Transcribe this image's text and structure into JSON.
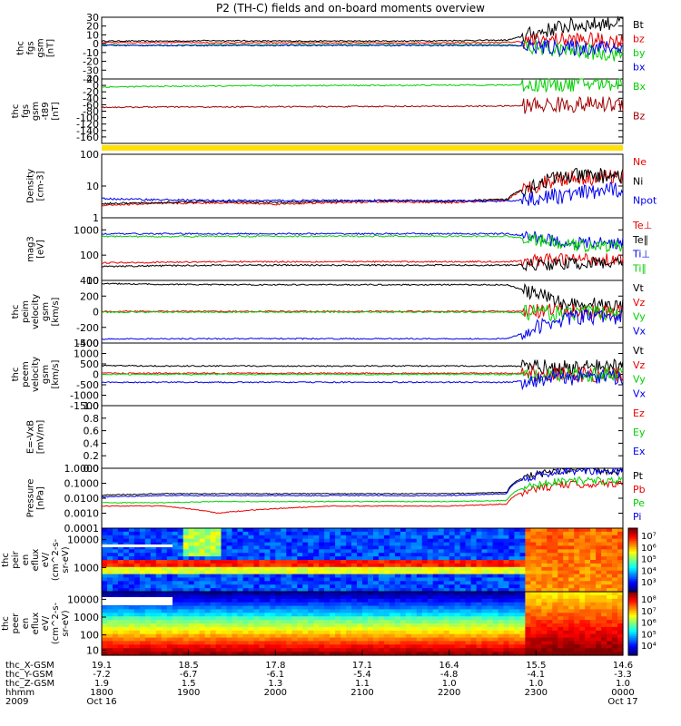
{
  "title": "P2 (TH-C) fields and on-board moments overview",
  "colors": {
    "black": "#000000",
    "red": "#e80000",
    "green": "#00d000",
    "blue": "#0000ee",
    "darkred": "#a00000",
    "yellow": "#ffe000"
  },
  "chart_data": [
    {
      "type": "line",
      "ylabel": [
        "thc",
        "fgs",
        "gsm",
        "[nT]"
      ],
      "ylim": [
        -40,
        30
      ],
      "yticks": [
        "30",
        "20",
        "10",
        "0",
        "-10",
        "-20",
        "-30",
        "-40"
      ],
      "series": [
        {
          "name": "Bt",
          "color": "#000000",
          "values": [
            3,
            3,
            3.5,
            3,
            3,
            3,
            3.5,
            4,
            20,
            25
          ]
        },
        {
          "name": "bz",
          "color": "#e80000",
          "values": [
            1,
            1.5,
            1,
            1,
            1,
            1,
            1,
            1.5,
            5,
            3
          ]
        },
        {
          "name": "by",
          "color": "#00d000",
          "values": [
            -1,
            -2,
            -1,
            -1,
            -1,
            -1,
            -1,
            -1,
            -8,
            -12
          ]
        },
        {
          "name": "bx",
          "color": "#0000ee",
          "values": [
            -2,
            -2,
            -2,
            -2,
            -2,
            -2,
            -2,
            -2,
            -5,
            -4
          ]
        }
      ]
    },
    {
      "type": "line",
      "ylabel": [
        "thc",
        "fgs",
        "gsm",
        "-t89",
        "[nT]"
      ],
      "ylim": [
        -180,
        20
      ],
      "yticks": [
        "20",
        "0",
        "-20",
        "-40",
        "-60",
        "-80",
        "-100",
        "-120",
        "-140",
        "-160"
      ],
      "series": [
        {
          "name": "Bx",
          "color": "#00d000",
          "values": [
            -5,
            -3,
            -2,
            -1,
            0,
            0,
            1,
            1,
            5,
            8
          ]
        },
        {
          "name": "Bz",
          "color": "#a00000",
          "values": [
            -68,
            -67,
            -67,
            -66,
            -66,
            -65,
            -65,
            -64,
            -60,
            -58
          ]
        }
      ]
    },
    {
      "type": "line",
      "ylabel": [
        "Density",
        "[cm-3]"
      ],
      "ylim": [
        1,
        100
      ],
      "yticks": [
        "100",
        "10",
        "1"
      ],
      "scale": "log",
      "series": [
        {
          "name": "Ne",
          "color": "#e80000",
          "values": [
            2.5,
            2.8,
            3,
            2.7,
            3,
            3.2,
            3,
            3.5,
            18,
            20
          ]
        },
        {
          "name": "Ni",
          "color": "#000000",
          "values": [
            2.8,
            3,
            3.3,
            3,
            3.3,
            3.5,
            3.3,
            3.8,
            20,
            22
          ]
        },
        {
          "name": "Npot",
          "color": "#0000ee",
          "values": [
            4,
            3.7,
            3.5,
            3.5,
            3.5,
            3.5,
            3.4,
            3.3,
            5,
            8
          ]
        }
      ]
    },
    {
      "type": "line",
      "ylabel": [
        "mag3",
        "[eV]"
      ],
      "ylim": [
        10,
        3000
      ],
      "yticks": [
        "1000",
        "100",
        "10"
      ],
      "scale": "log",
      "series": [
        {
          "name": "Te⊥",
          "color": "#e80000",
          "values": [
            50,
            52,
            55,
            55,
            55,
            55,
            55,
            55,
            70,
            70
          ]
        },
        {
          "name": "Te∥",
          "color": "#000000",
          "values": [
            35,
            38,
            40,
            40,
            40,
            40,
            40,
            40,
            45,
            50
          ]
        },
        {
          "name": "Ti⊥",
          "color": "#0000ee",
          "values": [
            700,
            700,
            700,
            700,
            700,
            700,
            700,
            700,
            300,
            300
          ]
        },
        {
          "name": "Ti∥",
          "color": "#00d000",
          "values": [
            550,
            550,
            560,
            560,
            560,
            560,
            560,
            560,
            250,
            220
          ]
        }
      ]
    },
    {
      "type": "line",
      "ylabel": [
        "thc",
        "peim",
        "velocity",
        "gsm",
        "[km/s]"
      ],
      "ylim": [
        -400,
        400
      ],
      "yticks": [
        "400",
        "200",
        "0",
        "-200",
        "-400"
      ],
      "series": [
        {
          "name": "Vt",
          "color": "#000000",
          "values": [
            360,
            350,
            345,
            345,
            345,
            345,
            345,
            345,
            100,
            80
          ]
        },
        {
          "name": "Vz",
          "color": "#e80000",
          "values": [
            5,
            5,
            5,
            5,
            5,
            5,
            5,
            5,
            0,
            0
          ]
        },
        {
          "name": "Vy",
          "color": "#00d000",
          "values": [
            -5,
            -5,
            -5,
            -5,
            -5,
            -5,
            -5,
            -5,
            -20,
            0
          ]
        },
        {
          "name": "Vx",
          "color": "#0000ee",
          "values": [
            -350,
            -345,
            -345,
            -345,
            -345,
            -345,
            -345,
            -345,
            -80,
            -60
          ]
        }
      ]
    },
    {
      "type": "line",
      "ylabel": [
        "thc",
        "peem",
        "velocity",
        "gsm",
        "[km/s]"
      ],
      "ylim": [
        -1500,
        1500
      ],
      "yticks": [
        "1500",
        "1000",
        "500",
        "0",
        "-500",
        "-1000",
        "-1500"
      ],
      "series": [
        {
          "name": "Vt",
          "color": "#000000",
          "values": [
            420,
            400,
            400,
            400,
            400,
            400,
            400,
            400,
            300,
            400
          ]
        },
        {
          "name": "Vz",
          "color": "#e80000",
          "values": [
            50,
            50,
            50,
            50,
            50,
            50,
            50,
            50,
            0,
            0
          ]
        },
        {
          "name": "Vy",
          "color": "#00d000",
          "values": [
            0,
            0,
            0,
            0,
            0,
            0,
            0,
            0,
            0,
            0
          ]
        },
        {
          "name": "Vx",
          "color": "#0000ee",
          "values": [
            -380,
            -380,
            -380,
            -380,
            -380,
            -380,
            -380,
            -380,
            -150,
            -150
          ]
        }
      ]
    },
    {
      "type": "line",
      "ylabel": [
        "E=-VxB",
        "[mV/m]"
      ],
      "ylim": [
        0,
        1
      ],
      "yticks": [
        "1.0",
        "0.8",
        "0.6",
        "0.4",
        "0.2",
        "0.0"
      ],
      "series": [
        {
          "name": "Ez",
          "color": "#e80000",
          "values": []
        },
        {
          "name": "Ey",
          "color": "#00d000",
          "values": []
        },
        {
          "name": "Ex",
          "color": "#0000ee",
          "values": []
        }
      ]
    },
    {
      "type": "line",
      "ylabel": [
        "Pressure",
        "[nPa]"
      ],
      "ylim": [
        0.0001,
        1
      ],
      "yticks": [
        "1.0000",
        "0.1000",
        "0.0100",
        "0.0010",
        "0.0001"
      ],
      "scale": "log",
      "series": [
        {
          "name": "Pt",
          "color": "#000000",
          "values": [
            0.016,
            0.02,
            0.02,
            0.02,
            0.02,
            0.02,
            0.02,
            0.025,
            0.7,
            0.7
          ]
        },
        {
          "name": "Pb",
          "color": "#e80000",
          "values": [
            0.003,
            0.003,
            0.001,
            0.002,
            0.003,
            0.003,
            0.003,
            0.004,
            0.08,
            0.1
          ]
        },
        {
          "name": "Pe",
          "color": "#00d000",
          "values": [
            0.005,
            0.005,
            0.006,
            0.006,
            0.006,
            0.006,
            0.006,
            0.007,
            0.15,
            0.15
          ]
        },
        {
          "name": "Pi",
          "color": "#0000ee",
          "values": [
            0.012,
            0.015,
            0.015,
            0.015,
            0.015,
            0.015,
            0.015,
            0.02,
            0.6,
            0.6
          ]
        }
      ]
    },
    {
      "type": "heatmap",
      "ylabel": [
        "thc",
        "peir",
        "en",
        "eflux",
        "eV/",
        "(cm^2-s-",
        "sr-eV)"
      ],
      "yticks": [
        "10000",
        "1000"
      ],
      "colorbar_ticks": [
        "10⁷",
        "10⁶",
        "10⁵",
        "10⁴",
        "10³"
      ]
    },
    {
      "type": "heatmap",
      "ylabel": [
        "thc",
        "peer",
        "en",
        "eflux",
        "eV/",
        "(cm^2-s-",
        "sr-eV)"
      ],
      "yticks": [
        "10000",
        "1000",
        "100",
        "10"
      ],
      "colorbar_ticks": [
        "10⁸",
        "10⁷",
        "10⁶",
        "10⁵",
        "10⁴"
      ]
    }
  ],
  "x_axis": {
    "xlim": [
      1800,
      2400
    ],
    "ticks": [
      {
        "t": 1800,
        "x_gsm": "19.1",
        "y_gsm": "-7.2",
        "z_gsm": "1.9",
        "hhmm": "1800",
        "date": "Oct 16"
      },
      {
        "t": 1900,
        "x_gsm": "18.5",
        "y_gsm": "-6.7",
        "z_gsm": "1.5",
        "hhmm": "1900",
        "date": ""
      },
      {
        "t": 2000,
        "x_gsm": "17.8",
        "y_gsm": "-6.1",
        "z_gsm": "1.3",
        "hhmm": "2000",
        "date": ""
      },
      {
        "t": 2100,
        "x_gsm": "17.1",
        "y_gsm": "-5.4",
        "z_gsm": "1.1",
        "hhmm": "2100",
        "date": ""
      },
      {
        "t": 2200,
        "x_gsm": "16.4",
        "y_gsm": "-4.8",
        "z_gsm": "1.0",
        "hhmm": "2200",
        "date": ""
      },
      {
        "t": 2300,
        "x_gsm": "15.5",
        "y_gsm": "-4.1",
        "z_gsm": "1.0",
        "hhmm": "2300",
        "date": ""
      },
      {
        "t": 2400,
        "x_gsm": "14.6",
        "y_gsm": "-3.3",
        "z_gsm": "1.0",
        "hhmm": "0000",
        "date": "Oct 17"
      }
    ],
    "row_labels": [
      "thc_X-GSM",
      "thc_Y-GSM",
      "thc_Z-GSM",
      "hhmm",
      "2009"
    ]
  }
}
